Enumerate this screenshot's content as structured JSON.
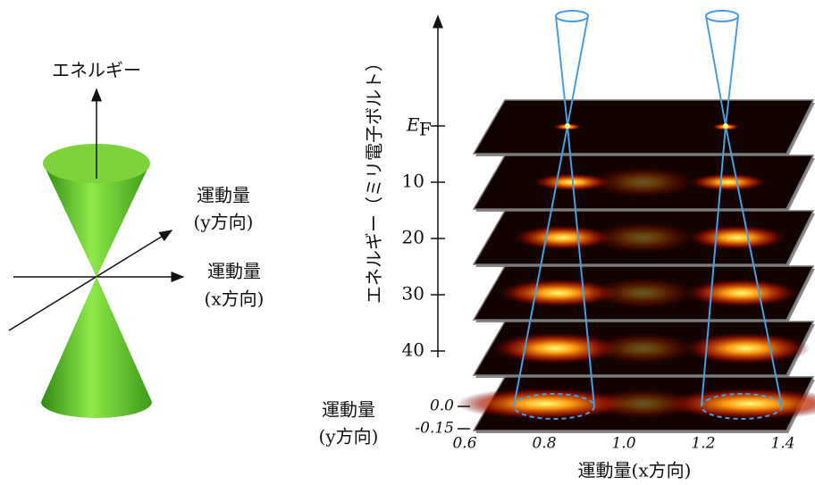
{
  "left_diagram": {
    "energy_axis_label": "エネルギー",
    "momentum_y_label": {
      "line1": "運動量",
      "line2": "(y方向)"
    },
    "momentum_x_label": {
      "line1": "運動量",
      "line2": "(x方向)"
    }
  },
  "right_figure": {
    "energy_axis_title": "エネルギー（ミリ電子ボルト）",
    "energy_ticks": [
      {
        "main": "E",
        "sub": "F"
      },
      "10",
      "20",
      "30",
      "40"
    ],
    "momentum_y_label": {
      "line1": "運動量",
      "line2": "(y方向)"
    },
    "momentum_y_ticks": [
      "0.0",
      "-0.15"
    ],
    "momentum_x_ticks": [
      "0.6",
      "0.8",
      "1.0",
      "1.2",
      "1.4"
    ],
    "momentum_x_label": "運動量(x方向)"
  }
}
